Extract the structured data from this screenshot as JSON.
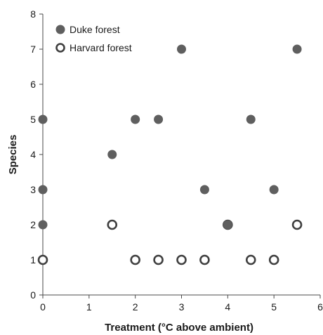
{
  "chart_data": {
    "type": "scatter",
    "title": "",
    "xlabel": "Treatment (°C above ambient)",
    "ylabel": "Species",
    "xlim": [
      0,
      6
    ],
    "ylim": [
      0,
      8
    ],
    "xticks": [
      "0",
      "1",
      "2",
      "3",
      "4",
      "5",
      "6"
    ],
    "yticks": [
      "0",
      "1",
      "2",
      "3",
      "4",
      "5",
      "6",
      "7",
      "8"
    ],
    "grid": false,
    "legend_position": "top-left",
    "series": [
      {
        "name": "Duke forest",
        "marker": "filled-circle",
        "color": "#5f5f5f",
        "x": [
          0,
          0,
          0,
          1.5,
          2,
          2.5,
          3,
          3.5,
          4,
          4.5,
          5,
          5.5
        ],
        "y": [
          2,
          3,
          5,
          4,
          5,
          5,
          7,
          3,
          2,
          5,
          3,
          7
        ]
      },
      {
        "name": "Harvard forest",
        "marker": "open-circle",
        "color": "#3f3f3f",
        "x": [
          0,
          1.5,
          2,
          2.5,
          3,
          3.5,
          4,
          4.5,
          5,
          5.5
        ],
        "y": [
          1,
          2,
          1,
          1,
          1,
          1,
          2,
          1,
          1,
          2
        ]
      }
    ]
  }
}
